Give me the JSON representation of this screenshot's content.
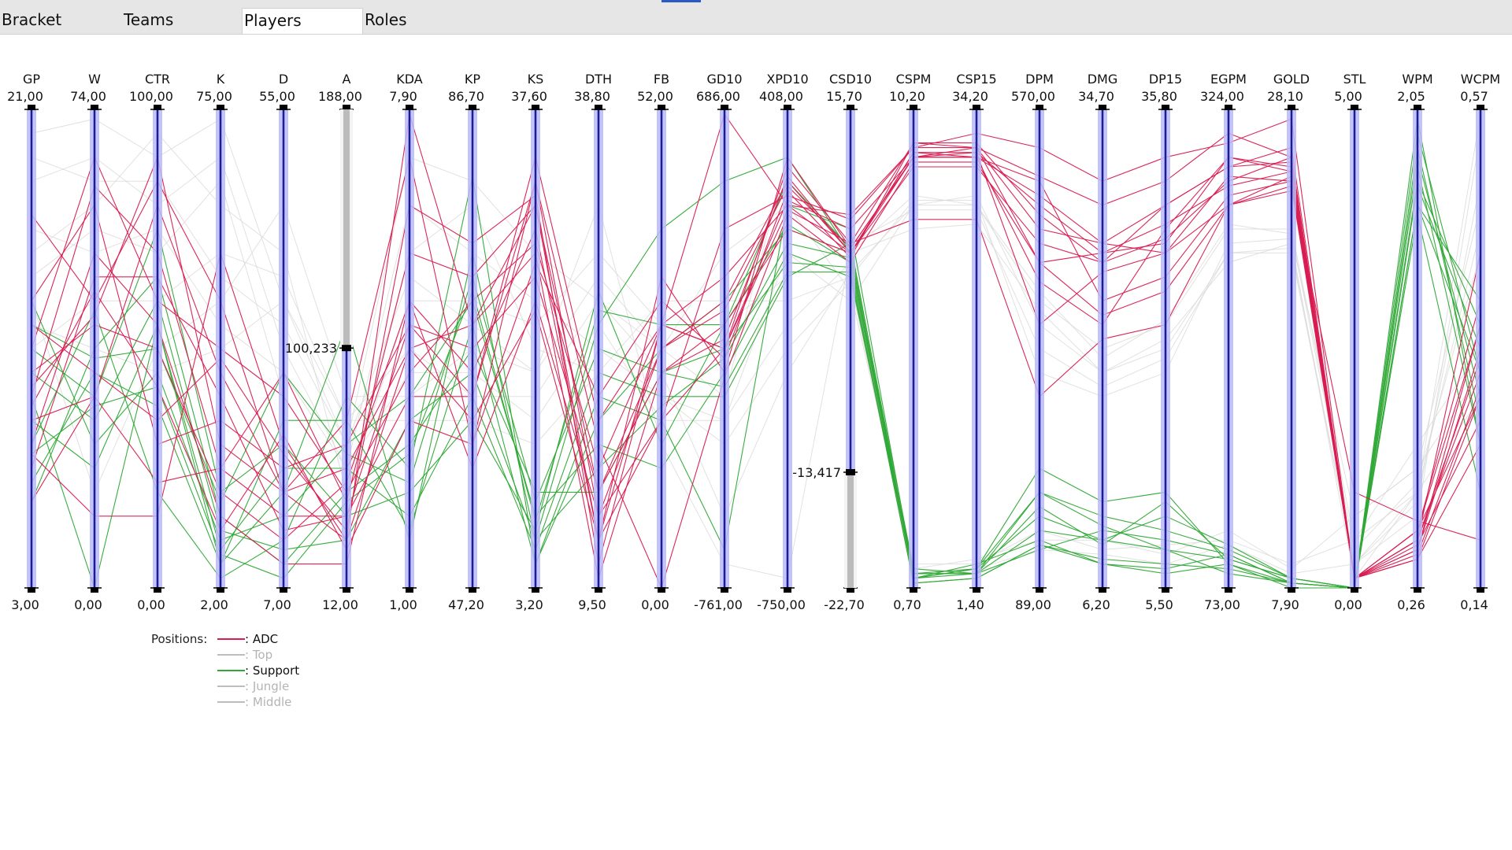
{
  "tabs": [
    {
      "label": "Bracket",
      "active": false
    },
    {
      "label": "Teams",
      "active": false
    },
    {
      "label": "Players",
      "active": true
    },
    {
      "label": "Roles",
      "active": false
    }
  ],
  "chart_data": {
    "type": "parallel-coordinates",
    "axes": [
      {
        "name": "GP",
        "max": "21,00",
        "min": "3,00"
      },
      {
        "name": "W",
        "max": "74,00",
        "min": "0,00"
      },
      {
        "name": "CTR",
        "max": "100,00",
        "min": "0,00"
      },
      {
        "name": "K",
        "max": "75,00",
        "min": "2,00"
      },
      {
        "name": "D",
        "max": "55,00",
        "min": "7,00"
      },
      {
        "name": "A",
        "max": "188,00",
        "min": "12,00"
      },
      {
        "name": "KDA",
        "max": "7,90",
        "min": "1,00"
      },
      {
        "name": "KP",
        "max": "86,70",
        "min": "47,20"
      },
      {
        "name": "KS",
        "max": "37,60",
        "min": "3,20"
      },
      {
        "name": "DTH",
        "max": "38,80",
        "min": "9,50"
      },
      {
        "name": "FB",
        "max": "52,00",
        "min": "0,00"
      },
      {
        "name": "GD10",
        "max": "686,00",
        "min": "-761,00"
      },
      {
        "name": "XPD10",
        "max": "408,00",
        "min": "-750,00"
      },
      {
        "name": "CSD10",
        "max": "15,70",
        "min": "-22,70"
      },
      {
        "name": "CSPM",
        "max": "10,20",
        "min": "0,70"
      },
      {
        "name": "CSP15",
        "max": "34,20",
        "min": "1,40"
      },
      {
        "name": "DPM",
        "max": "570,00",
        "min": "89,00"
      },
      {
        "name": "DMG",
        "max": "34,70",
        "min": "6,20"
      },
      {
        "name": "DP15",
        "max": "35,80",
        "min": "5,50"
      },
      {
        "name": "EGPM",
        "max": "324,00",
        "min": "73,00"
      },
      {
        "name": "GOLD",
        "max": "28,10",
        "min": "7,90"
      },
      {
        "name": "STL",
        "max": "5,00",
        "min": "0,00"
      },
      {
        "name": "WPM",
        "max": "2,05",
        "min": "0,26"
      },
      {
        "name": "WCPM",
        "max": "0,57",
        "min": "0,14"
      }
    ],
    "brushes": [
      {
        "axis": "A",
        "from": 188.0,
        "to": 100.233,
        "label": "100,233"
      },
      {
        "axis": "CSD10",
        "from": -13.417,
        "to": -22.7,
        "label": "-13,417"
      }
    ],
    "legend": {
      "title": "Positions:",
      "entries": [
        {
          "label": ": ADC",
          "color": "#d81b50",
          "active": true
        },
        {
          "label": ": Top",
          "color": "#bdbdbd",
          "active": false
        },
        {
          "label": ": Support",
          "color": "#2fa836",
          "active": true
        },
        {
          "label": ": Jungle",
          "color": "#bdbdbd",
          "active": false
        },
        {
          "label": ": Middle",
          "color": "#bdbdbd",
          "active": false
        }
      ]
    },
    "series": [
      {
        "position": "ADC",
        "color": "#d81b50",
        "lines": [
          [
            0.28,
            0.15,
            0.15,
            0.7,
            0.3,
            0.1,
            0.99,
            0.55,
            0.8,
            0.1,
            0.55,
            0.99,
            0.8,
            0.78,
            0.92,
            0.95,
            0.92,
            0.85,
            0.9,
            0.93,
            0.98,
            0.02,
            0.1,
            0.7
          ],
          [
            0.78,
            0.6,
            0.85,
            0.6,
            0.2,
            0.35,
            0.9,
            0.3,
            0.85,
            0.15,
            0.35,
            0.75,
            0.82,
            0.77,
            0.92,
            0.92,
            0.86,
            0.8,
            0.85,
            0.95,
            0.9,
            0.02,
            0.12,
            0.6
          ],
          [
            0.4,
            0.84,
            0.7,
            0.25,
            0.45,
            0.18,
            0.7,
            0.65,
            0.8,
            0.2,
            0.5,
            0.6,
            0.85,
            0.7,
            0.91,
            0.91,
            0.8,
            0.7,
            0.72,
            0.9,
            0.88,
            0.02,
            0.08,
            0.55
          ],
          [
            0.55,
            0.45,
            0.35,
            0.48,
            0.28,
            0.12,
            0.8,
            0.72,
            0.82,
            0.05,
            0.55,
            0.5,
            0.88,
            0.72,
            0.93,
            0.93,
            0.78,
            0.68,
            0.8,
            0.88,
            0.92,
            0.02,
            0.1,
            0.45
          ],
          [
            0.3,
            0.7,
            0.55,
            0.15,
            0.05,
            0.05,
            0.6,
            0.45,
            0.75,
            0.1,
            0.65,
            0.45,
            0.9,
            0.71,
            0.9,
            0.92,
            0.75,
            0.72,
            0.7,
            0.8,
            0.86,
            0.02,
            0.06,
            0.3
          ],
          [
            0.42,
            0.57,
            0.9,
            0.3,
            0.2,
            0.25,
            0.5,
            0.55,
            0.7,
            0.02,
            0.45,
            0.55,
            0.75,
            0.7,
            0.9,
            0.9,
            0.85,
            0.6,
            0.65,
            0.82,
            0.85,
            0.02,
            0.08,
            0.5
          ],
          [
            0.18,
            0.4,
            0.22,
            0.25,
            0.15,
            0.15,
            0.55,
            0.4,
            0.85,
            0.3,
            0.0,
            0.44,
            0.78,
            0.68,
            0.89,
            0.89,
            0.68,
            0.57,
            0.62,
            0.8,
            0.84,
            0.02,
            0.12,
            0.4
          ],
          [
            0.5,
            0.9,
            0.6,
            0.5,
            0.4,
            0.2,
            0.45,
            0.6,
            0.72,
            0.25,
            0.55,
            0.65,
            0.8,
            0.7,
            0.88,
            0.88,
            0.72,
            0.68,
            0.73,
            0.85,
            0.9,
            0.02,
            0.12,
            0.55
          ],
          [
            0.38,
            0.62,
            0.42,
            0.12,
            0.32,
            0.08,
            0.35,
            0.3,
            0.68,
            0.4,
            0.6,
            0.48,
            0.83,
            0.69,
            0.93,
            0.92,
            0.68,
            0.7,
            0.76,
            0.84,
            0.87,
            0.02,
            0.1,
            0.48
          ],
          [
            0.6,
            0.8,
            0.3,
            0.35,
            0.25,
            0.3,
            0.55,
            0.5,
            0.65,
            0.2,
            0.45,
            0.52,
            0.86,
            0.7,
            0.91,
            0.9,
            0.82,
            0.72,
            0.8,
            0.88,
            0.89,
            0.02,
            0.07,
            0.42
          ],
          [
            0.45,
            0.55,
            0.5,
            0.2,
            0.1,
            0.22,
            0.6,
            0.25,
            0.6,
            0.15,
            0.5,
            0.58,
            0.84,
            0.71,
            0.9,
            0.91,
            0.55,
            0.66,
            0.7,
            0.86,
            0.85,
            0.02,
            0.09,
            0.35
          ],
          [
            0.25,
            0.65,
            0.65,
            0.4,
            0.12,
            0.15,
            0.4,
            0.4,
            0.9,
            0.35,
            0.55,
            0.5,
            0.81,
            0.75,
            0.9,
            0.9,
            0.64,
            0.55,
            0.75,
            0.9,
            0.87,
            0.02,
            0.06,
            0.4
          ],
          [
            0.35,
            0.4,
            0.8,
            0.45,
            0.2,
            0.1,
            0.5,
            0.35,
            0.58,
            0.1,
            0.35,
            0.5,
            0.79,
            0.72,
            0.77,
            0.77,
            0.4,
            0.52,
            0.55,
            0.8,
            0.83,
            0.2,
            0.14,
            0.1
          ]
        ]
      },
      {
        "position": "Support",
        "color": "#2fa836",
        "lines": [
          [
            0.4,
            0.0,
            0.55,
            0.05,
            0.2,
            0.55,
            0.1,
            0.7,
            0.1,
            0.55,
            0.75,
            0.85,
            0.9,
            0.7,
            0.02,
            0.04,
            0.25,
            0.18,
            0.2,
            0.05,
            0.01,
            0.0,
            0.98,
            0.3
          ],
          [
            0.3,
            0.58,
            0.2,
            0.02,
            0.1,
            0.4,
            0.25,
            0.86,
            0.05,
            0.4,
            0.35,
            0.08,
            0.8,
            0.75,
            0.03,
            0.03,
            0.12,
            0.1,
            0.08,
            0.06,
            0.02,
            0.0,
            0.8,
            0.6
          ],
          [
            0.6,
            0.3,
            0.45,
            0.1,
            0.15,
            0.3,
            0.4,
            0.6,
            0.15,
            0.3,
            0.25,
            0.45,
            0.7,
            0.65,
            0.03,
            0.04,
            0.2,
            0.15,
            0.12,
            0.08,
            0.02,
            0.0,
            0.9,
            0.4
          ],
          [
            0.18,
            0.5,
            0.65,
            0.15,
            0.05,
            0.2,
            0.3,
            0.5,
            0.2,
            0.2,
            0.45,
            0.5,
            0.68,
            0.67,
            0.01,
            0.02,
            0.09,
            0.06,
            0.05,
            0.04,
            0.01,
            0.0,
            0.85,
            0.55
          ],
          [
            0.5,
            0.4,
            0.75,
            0.2,
            0.3,
            0.15,
            0.2,
            0.35,
            0.12,
            0.62,
            0.3,
            0.55,
            0.76,
            0.68,
            0.02,
            0.05,
            0.1,
            0.05,
            0.03,
            0.05,
            0.0,
            0.0,
            0.95,
            0.45
          ],
          [
            0.35,
            0.25,
            0.55,
            0.08,
            0.25,
            0.25,
            0.15,
            0.4,
            0.08,
            0.45,
            0.4,
            0.4,
            0.65,
            0.72,
            0.02,
            0.03,
            0.08,
            0.12,
            0.1,
            0.07,
            0.01,
            0.0,
            0.78,
            0.2
          ],
          [
            0.22,
            0.45,
            0.38,
            0.05,
            0.35,
            0.35,
            0.12,
            0.55,
            0.05,
            0.35,
            0.5,
            0.6,
            0.75,
            0.7,
            0.03,
            0.03,
            0.17,
            0.09,
            0.18,
            0.06,
            0.02,
            0.0,
            0.88,
            0.3
          ],
          [
            0.45,
            0.35,
            0.6,
            0.12,
            0.08,
            0.1,
            0.35,
            0.45,
            0.1,
            0.25,
            0.38,
            0.48,
            0.72,
            0.69,
            0.02,
            0.04,
            0.15,
            0.1,
            0.15,
            0.09,
            0.02,
            0.0,
            0.84,
            0.5
          ],
          [
            0.55,
            0.48,
            0.5,
            0.18,
            0.45,
            0.28,
            0.22,
            0.65,
            0.18,
            0.5,
            0.45,
            0.42,
            0.66,
            0.66,
            0.01,
            0.02,
            0.09,
            0.05,
            0.04,
            0.07,
            0.01,
            0.0,
            0.92,
            0.35
          ],
          [
            0.28,
            0.38,
            0.42,
            0.07,
            0.02,
            0.18,
            0.28,
            0.62,
            0.14,
            0.58,
            0.55,
            0.55,
            0.85,
            0.71,
            0.04,
            0.03,
            0.2,
            0.13,
            0.08,
            0.03,
            0.01,
            0.0,
            0.8,
            0.45
          ]
        ]
      },
      {
        "position": "Other",
        "color": "#d9d9d9",
        "lines": [
          [
            0.95,
            0.98,
            0.9,
            0.98,
            0.6,
            0.3,
            0.9,
            0.85,
            0.7,
            0.6,
            0.5,
            0.4,
            0.9,
            0.7,
            0.82,
            0.8,
            0.6,
            0.5,
            0.55,
            0.75,
            0.75,
            0.1,
            0.2,
            0.99
          ],
          [
            0.85,
            0.9,
            0.8,
            0.9,
            0.5,
            0.25,
            0.8,
            0.7,
            0.6,
            0.5,
            0.4,
            0.35,
            0.7,
            0.6,
            0.8,
            0.82,
            0.55,
            0.45,
            0.5,
            0.7,
            0.7,
            0.05,
            0.15,
            0.95
          ],
          [
            0.7,
            0.8,
            0.95,
            0.8,
            0.7,
            0.2,
            0.7,
            0.8,
            0.5,
            0.45,
            0.6,
            0.6,
            0.6,
            0.65,
            0.81,
            0.81,
            0.45,
            0.4,
            0.45,
            0.72,
            0.73,
            0.15,
            0.25,
            0.8
          ],
          [
            0.65,
            0.75,
            0.7,
            0.85,
            0.4,
            0.2,
            0.6,
            0.6,
            0.55,
            0.7,
            0.55,
            0.55,
            0.65,
            0.72,
            0.79,
            0.79,
            0.5,
            0.42,
            0.48,
            0.7,
            0.71,
            0.05,
            0.18,
            0.85
          ],
          [
            0.6,
            0.2,
            0.5,
            0.6,
            0.8,
            0.4,
            0.4,
            0.5,
            0.45,
            0.8,
            0.3,
            0.05,
            0.02,
            0.7,
            0.75,
            0.76,
            0.58,
            0.45,
            0.52,
            0.68,
            0.72,
            0.02,
            0.2,
            0.75
          ],
          [
            0.5,
            0.6,
            0.6,
            0.7,
            0.65,
            0.35,
            0.5,
            0.4,
            0.4,
            0.6,
            0.45,
            0.15,
            0.45,
            0.66,
            0.8,
            0.8,
            0.62,
            0.48,
            0.56,
            0.76,
            0.74,
            0.08,
            0.22,
            0.7
          ],
          [
            0.9,
            0.85,
            0.85,
            0.65,
            0.55,
            0.3,
            0.65,
            0.55,
            0.45,
            0.65,
            0.5,
            0.7,
            0.8,
            0.62,
            0.05,
            0.05,
            0.12,
            0.08,
            0.09,
            0.1,
            0.05,
            0.1,
            0.3,
            0.5
          ],
          [
            0.75,
            0.7,
            0.75,
            0.55,
            0.45,
            0.25,
            0.45,
            0.45,
            0.35,
            0.55,
            0.35,
            0.35,
            0.55,
            0.68,
            0.04,
            0.06,
            0.1,
            0.1,
            0.07,
            0.12,
            0.04,
            0.15,
            0.25,
            0.45
          ],
          [
            0.55,
            0.5,
            0.45,
            0.5,
            0.6,
            0.35,
            0.35,
            0.35,
            0.3,
            0.45,
            0.4,
            0.3,
            0.5,
            0.64,
            0.03,
            0.04,
            0.08,
            0.07,
            0.05,
            0.09,
            0.03,
            0.05,
            0.2,
            0.4
          ]
        ]
      }
    ]
  }
}
